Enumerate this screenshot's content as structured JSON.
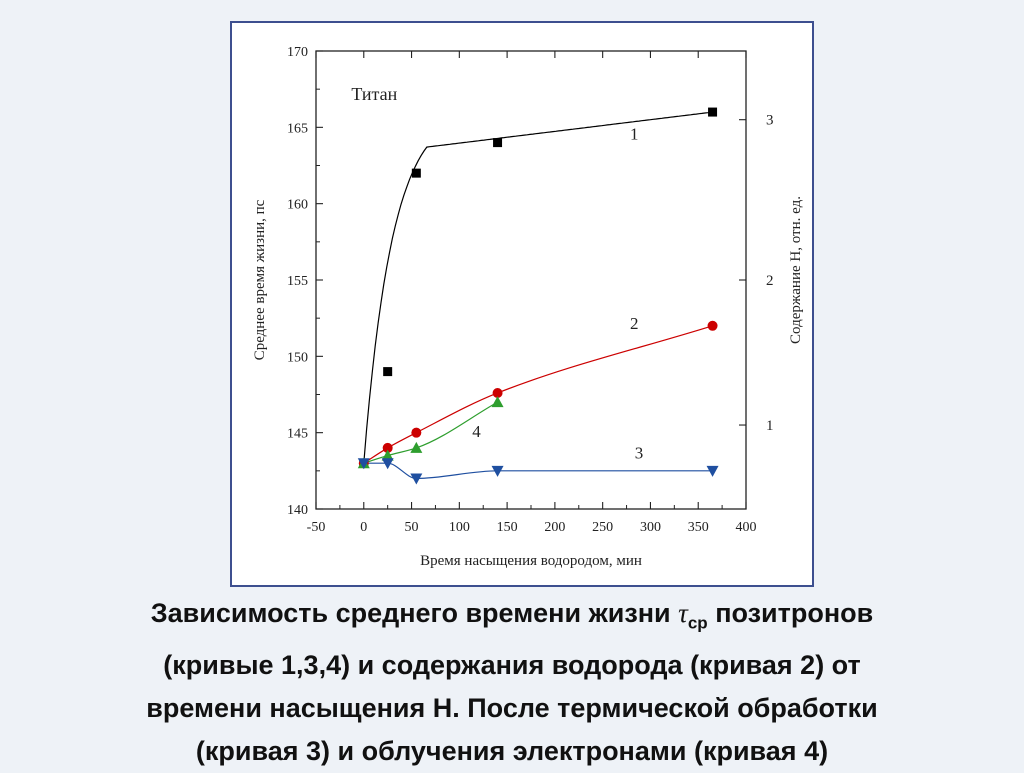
{
  "chart_data": {
    "type": "line",
    "xlabel": "Время насыщения водородом, мин",
    "ylabel": "Среднее время жизни, пс",
    "y2label": "Содержание H, отн. ед.",
    "xlim": [
      -50,
      400
    ],
    "ylim": [
      140,
      170
    ],
    "xticks": [
      -50,
      0,
      50,
      100,
      150,
      200,
      250,
      300,
      350,
      400
    ],
    "yticks": [
      140,
      145,
      150,
      155,
      160,
      165,
      170
    ],
    "y2ticks": [
      {
        "label": "1",
        "y": 145.5
      },
      {
        "label": "2",
        "y": 155.0
      },
      {
        "label": "3",
        "y": 165.5
      }
    ],
    "annotation": "Титан",
    "grid": false,
    "series": [
      {
        "name": "1",
        "color": "#000000",
        "marker": "square",
        "smooth": true,
        "x": [
          0,
          25,
          55,
          140,
          365
        ],
        "y": [
          143,
          149,
          162,
          164,
          166
        ]
      },
      {
        "name": "2",
        "color": "#cc0000",
        "marker": "circle",
        "x": [
          0,
          25,
          55,
          140,
          365
        ],
        "y": [
          143,
          144,
          145,
          147.6,
          152
        ]
      },
      {
        "name": "4",
        "color": "#2e9e2e",
        "marker": "triangle-up",
        "x": [
          0,
          25,
          55,
          140
        ],
        "y": [
          143,
          143.5,
          144,
          147
        ]
      },
      {
        "name": "3",
        "color": "#1f4fa0",
        "marker": "triangle-down",
        "x": [
          0,
          25,
          55,
          140,
          365
        ],
        "y": [
          143,
          143,
          142,
          142.5,
          142.5
        ]
      }
    ],
    "curve_labels": [
      {
        "text": "1",
        "x": 283,
        "y": 164.2
      },
      {
        "text": "2",
        "x": 283,
        "y": 151.8
      },
      {
        "text": "4",
        "x": 118,
        "y": 144.7
      },
      {
        "text": "3",
        "x": 288,
        "y": 143.3
      }
    ]
  },
  "caption": {
    "line1_before": "Зависимость среднего времени жизни ",
    "tau": "τ",
    "tau_sub": "ср",
    "line1_after": " позитронов",
    "line2": "(кривые 1,3,4) и содержания водорода (кривая 2) от",
    "line3": "времени насыщения Н. После термической обработки",
    "line4": "(кривая 3) и облучения электронами (кривая 4)"
  }
}
